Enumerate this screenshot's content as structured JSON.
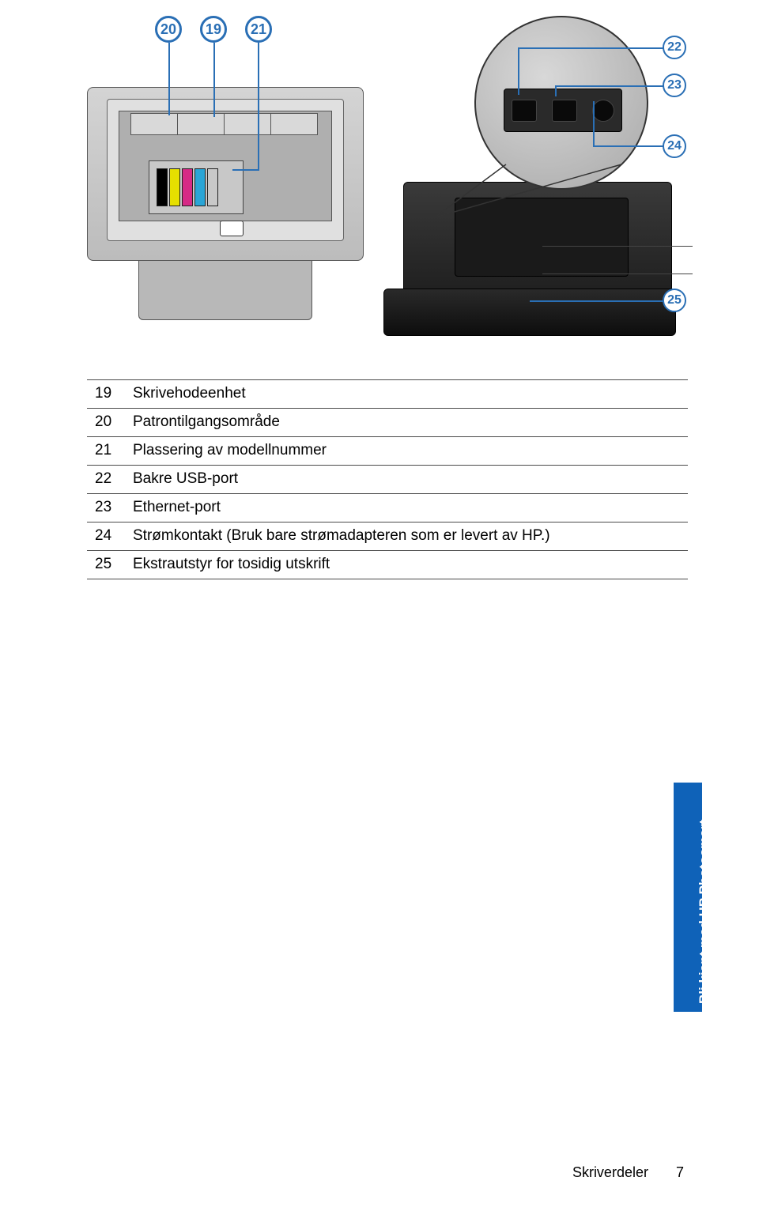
{
  "callouts": {
    "c19": {
      "num": "19",
      "color": "#2a6fb5"
    },
    "c20": {
      "num": "20",
      "color": "#2a6fb5"
    },
    "c21": {
      "num": "21",
      "color": "#2a6fb5"
    },
    "c22": {
      "num": "22",
      "color": "#2a6fb5"
    },
    "c23": {
      "num": "23",
      "color": "#2a6fb5"
    },
    "c24": {
      "num": "24",
      "color": "#2a6fb5"
    },
    "c25": {
      "num": "25",
      "color": "#2a6fb5"
    }
  },
  "printer_top": {
    "cartridge_colors": [
      "#000000",
      "#e6e000",
      "#d62a86",
      "#2aa5d6",
      "#c8c8c8"
    ]
  },
  "table": {
    "rows": [
      {
        "num": "19",
        "text": "Skrivehodeenhet"
      },
      {
        "num": "20",
        "text": "Patrontilgangsområde"
      },
      {
        "num": "21",
        "text": "Plassering av modellnummer"
      },
      {
        "num": "22",
        "text": "Bakre USB-port"
      },
      {
        "num": "23",
        "text": "Ethernet-port"
      },
      {
        "num": "24",
        "text": "Strømkontakt (Bruk bare strømadapteren som er levert av HP.)"
      },
      {
        "num": "25",
        "text": "Ekstrautstyr for tosidig utskrift"
      }
    ]
  },
  "side_tab": {
    "text": "Bli kjent med HP Photosmart",
    "bg_color": "#0f62b8"
  },
  "footer": {
    "section": "Skriverdeler",
    "page": "7"
  }
}
